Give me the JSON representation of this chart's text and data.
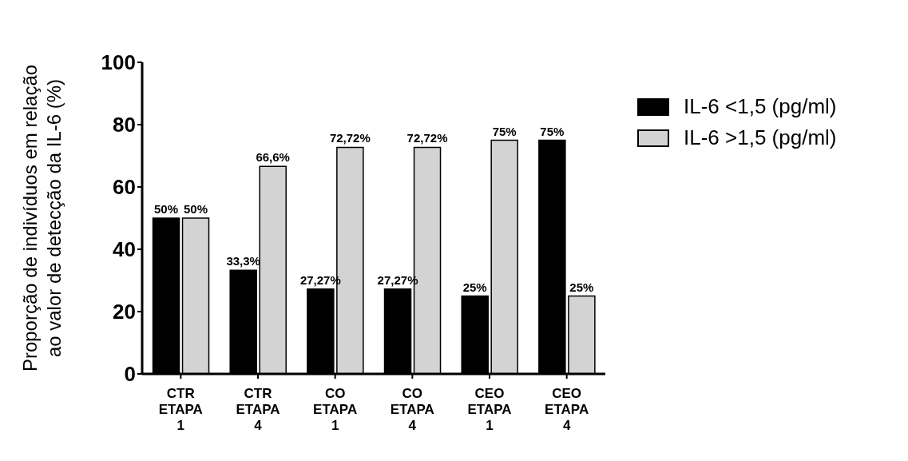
{
  "chart_data": {
    "type": "bar",
    "ylabel": "Proporção de indivíduos em relação\nao valor de detecção da IL-6 (%)",
    "categories": [
      "CTR\nETAPA\n1",
      "CTR\nETAPA\n4",
      "CO\nETAPA\n1",
      "CO\nETAPA\n4",
      "CEO\nETAPA\n1",
      "CEO\nETAPA\n4"
    ],
    "series": [
      {
        "name": "IL-6 <1,5 (pg/ml)",
        "color": "#000000",
        "values": [
          50,
          33.3,
          27.27,
          27.27,
          25,
          75
        ],
        "value_labels": [
          "50%",
          "33,3%",
          "27,27%",
          "27,27%",
          "25%",
          "75%"
        ]
      },
      {
        "name": "IL-6 >1,5 (pg/ml)",
        "color": "#d3d3d3",
        "values": [
          50,
          66.6,
          72.72,
          72.72,
          75,
          25
        ],
        "value_labels": [
          "50%",
          "66,6%",
          "72,72%",
          "72,72%",
          "75%",
          "25%"
        ]
      }
    ],
    "ylim": [
      0,
      100
    ],
    "yticks": [
      0,
      20,
      40,
      60,
      80,
      100
    ],
    "grid": false,
    "legend": "right"
  }
}
